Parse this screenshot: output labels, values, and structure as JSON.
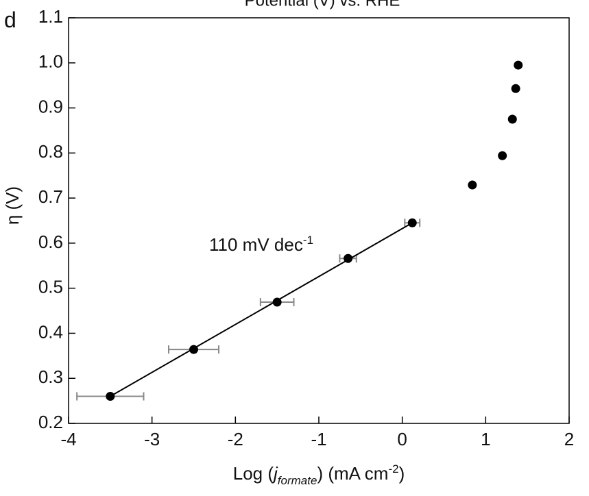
{
  "chart_data": {
    "type": "scatter",
    "panel_label": "d",
    "top_label": "Potential (V) vs. RHE",
    "ylabel": "η (V)",
    "xlabel": [
      "Log (",
      "j",
      "formate",
      ") (mA cm",
      "-2",
      ")"
    ],
    "annotation": [
      "110 mV dec",
      "-1"
    ],
    "xlim": [
      -4,
      2
    ],
    "ylim": [
      0.2,
      1.1
    ],
    "xticks": [
      -4,
      -3,
      -2,
      -1,
      0,
      1,
      2
    ],
    "yticks": [
      0.2,
      0.3,
      0.4,
      0.5,
      0.6,
      0.7,
      0.8,
      0.9,
      {
        "value": 1,
        "label": "1.0"
      },
      1.1
    ],
    "series": [
      {
        "type": "scatter",
        "color": "#000000",
        "error_color": "#888888",
        "x": [
          -3.5,
          -2.5,
          -1.5,
          -0.65,
          0.12,
          0.84,
          1.2,
          1.32,
          1.36,
          1.39
        ],
        "y": [
          0.26,
          0.364,
          0.469,
          0.566,
          0.645,
          0.729,
          0.794,
          0.875,
          0.943,
          0.995
        ],
        "xerr": [
          0.4,
          0.3,
          0.2,
          0.1,
          0.09,
          null,
          null,
          null,
          null,
          null
        ]
      },
      {
        "type": "line",
        "color": "#000000",
        "x": [
          -3.5,
          0.12
        ],
        "y": [
          0.26,
          0.645
        ]
      }
    ]
  }
}
